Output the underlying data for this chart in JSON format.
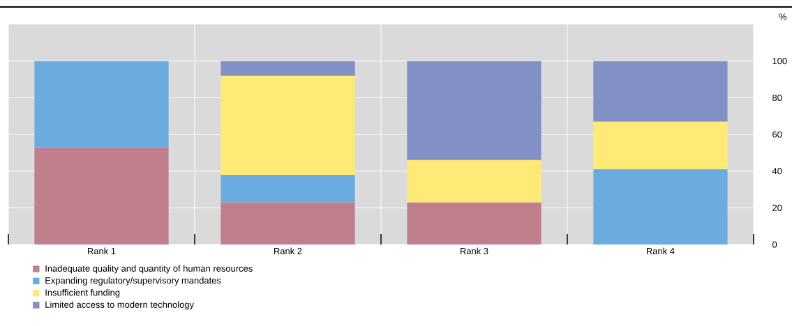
{
  "chart_data": {
    "type": "bar",
    "stacked": true,
    "ylabel": "%",
    "categories": [
      "Rank 1",
      "Rank 2",
      "Rank 3",
      "Rank 4"
    ],
    "series": [
      {
        "name": "Inadequate quality and quantity of human resources",
        "color": "#c17f8d",
        "values": [
          53,
          23,
          23,
          null
        ]
      },
      {
        "name": "Expanding regulatory/supervisory mandates",
        "color": "#6aace0",
        "values": [
          47,
          15,
          null,
          41
        ]
      },
      {
        "name": "Insufficient funding",
        "color": "#ffe977",
        "values": [
          null,
          54,
          23,
          26
        ]
      },
      {
        "name": "Limited access to modern technology",
        "color": "#8290c6",
        "values": [
          null,
          8,
          54,
          33
        ]
      }
    ],
    "ylim": [
      0,
      120
    ],
    "yticks": [
      0,
      20,
      40,
      60,
      80,
      100
    ],
    "grid": true,
    "legend": "bottom"
  }
}
